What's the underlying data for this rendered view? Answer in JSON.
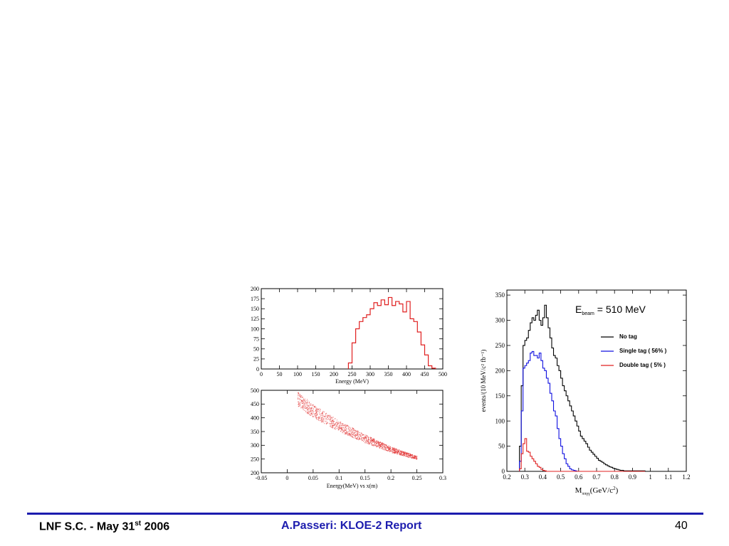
{
  "footer": {
    "left_text": "LNF S.C. - May 31",
    "left_sup": "st",
    "left_year": " 2006",
    "center_text": "A.Passeri: KLOE-2 Report",
    "page_number": "40"
  },
  "colors": {
    "footer_blue": "#1c1cae",
    "red": "#e02020",
    "blue": "#1010e0",
    "black": "#000000"
  },
  "chart_data": [
    {
      "type": "histogram",
      "xlabel": "Energy (MeV)",
      "ylabel": "",
      "xlim": [
        0,
        500
      ],
      "ylim": [
        0,
        200
      ],
      "xticks": [
        "0",
        "50",
        "100",
        "150",
        "200",
        "250",
        "300",
        "350",
        "400",
        "450",
        "500"
      ],
      "yticks": [
        "0",
        "25",
        "50",
        "75",
        "100",
        "125",
        "150",
        "175",
        "200"
      ],
      "bin_width": 10,
      "bin_starts": [
        240,
        250,
        260,
        270,
        280,
        290,
        300,
        310,
        320,
        330,
        340,
        350,
        360,
        370,
        380,
        390,
        400,
        410,
        420,
        430,
        440,
        450,
        460,
        470
      ],
      "values": [
        15,
        65,
        100,
        118,
        128,
        135,
        150,
        165,
        158,
        172,
        160,
        178,
        158,
        168,
        162,
        142,
        168,
        125,
        118,
        92,
        60,
        35,
        8,
        2
      ],
      "color": "#e02020"
    },
    {
      "type": "scatter",
      "xlabel": "Energy(MeV)  vs x(m)",
      "ylabel": "",
      "xlim": [
        -0.05,
        0.3
      ],
      "ylim": [
        200,
        500
      ],
      "xticks": [
        "-0.05",
        "0",
        "0.05",
        "0.1",
        "0.15",
        "0.2",
        "0.25",
        "0.3"
      ],
      "yticks": [
        "200",
        "250",
        "300",
        "350",
        "400",
        "450",
        "500"
      ],
      "band": {
        "x": [
          0.02,
          0.05,
          0.1,
          0.15,
          0.2,
          0.25
        ],
        "y": [
          470,
          425,
          370,
          325,
          285,
          255
        ]
      },
      "color": "#e02020"
    },
    {
      "type": "histogram",
      "xlabel": "M",
      "xlabel_sub": "ππγγ",
      "xlabel_unit": "(GeV/c",
      "xlabel_sup": "2",
      "xlabel_end": ")",
      "ylabel": "events/(10 MeV/c² fb⁻¹)",
      "xlim": [
        0.2,
        1.2
      ],
      "ylim": [
        0,
        360
      ],
      "xticks": [
        "0.2",
        "0.3",
        "0.4",
        "0.5",
        "0.6",
        "0.7",
        "0.8",
        "0.9",
        "1",
        "1.1",
        "1.2"
      ],
      "yticks": [
        "0",
        "50",
        "100",
        "150",
        "200",
        "250",
        "300",
        "350"
      ],
      "annotation": "E",
      "annotation_sub": "beam",
      "annotation_rest": " =  510 MeV",
      "legend_position": "right",
      "bin_width": 0.01,
      "x_start": 0.27,
      "series": [
        {
          "name": "No tag",
          "color": "#000000",
          "values": [
            50,
            170,
            250,
            260,
            265,
            280,
            295,
            305,
            300,
            310,
            320,
            300,
            290,
            305,
            330,
            305,
            285,
            265,
            245,
            230,
            225,
            210,
            200,
            185,
            170,
            160,
            150,
            140,
            130,
            120,
            110,
            100,
            90,
            80,
            70,
            65,
            60,
            55,
            48,
            42,
            38,
            34,
            30,
            26,
            22,
            20,
            18,
            15,
            13,
            11,
            9,
            8,
            6,
            5,
            4,
            3,
            2,
            2,
            1,
            1,
            1,
            1,
            1,
            1,
            1,
            1,
            1,
            1,
            1,
            1
          ]
        },
        {
          "name": "Single tag ( 56% )",
          "color": "#1010e0",
          "values": [
            20,
            120,
            205,
            210,
            215,
            220,
            235,
            238,
            230,
            230,
            225,
            235,
            220,
            205,
            200,
            185,
            175,
            155,
            140,
            120,
            110,
            85,
            65,
            50,
            35,
            25,
            15,
            10,
            5,
            3,
            2,
            1,
            0,
            0,
            0,
            0,
            0,
            0,
            0,
            0,
            0,
            0,
            0,
            0,
            0,
            0,
            0,
            0,
            0,
            0,
            0,
            0,
            0,
            0,
            0,
            0,
            0,
            0,
            0,
            0,
            0,
            0,
            0,
            0,
            0,
            0,
            0,
            0,
            0,
            0
          ]
        },
        {
          "name": "Double tag ( 5% )",
          "color": "#e02020",
          "values": [
            5,
            35,
            55,
            65,
            40,
            38,
            30,
            25,
            20,
            15,
            10,
            8,
            4,
            2,
            1,
            0,
            0,
            0,
            0,
            0,
            0,
            0,
            0,
            0,
            0,
            0,
            0,
            0,
            0,
            0,
            0,
            0,
            0,
            0,
            0,
            0,
            0,
            0,
            0,
            0,
            0,
            0,
            0,
            0,
            0,
            0,
            0,
            0,
            0,
            0,
            0,
            0,
            0,
            0,
            0,
            0,
            0,
            0,
            0,
            0,
            0,
            0,
            0,
            0,
            0,
            0,
            0,
            0,
            0,
            0
          ]
        }
      ]
    }
  ]
}
